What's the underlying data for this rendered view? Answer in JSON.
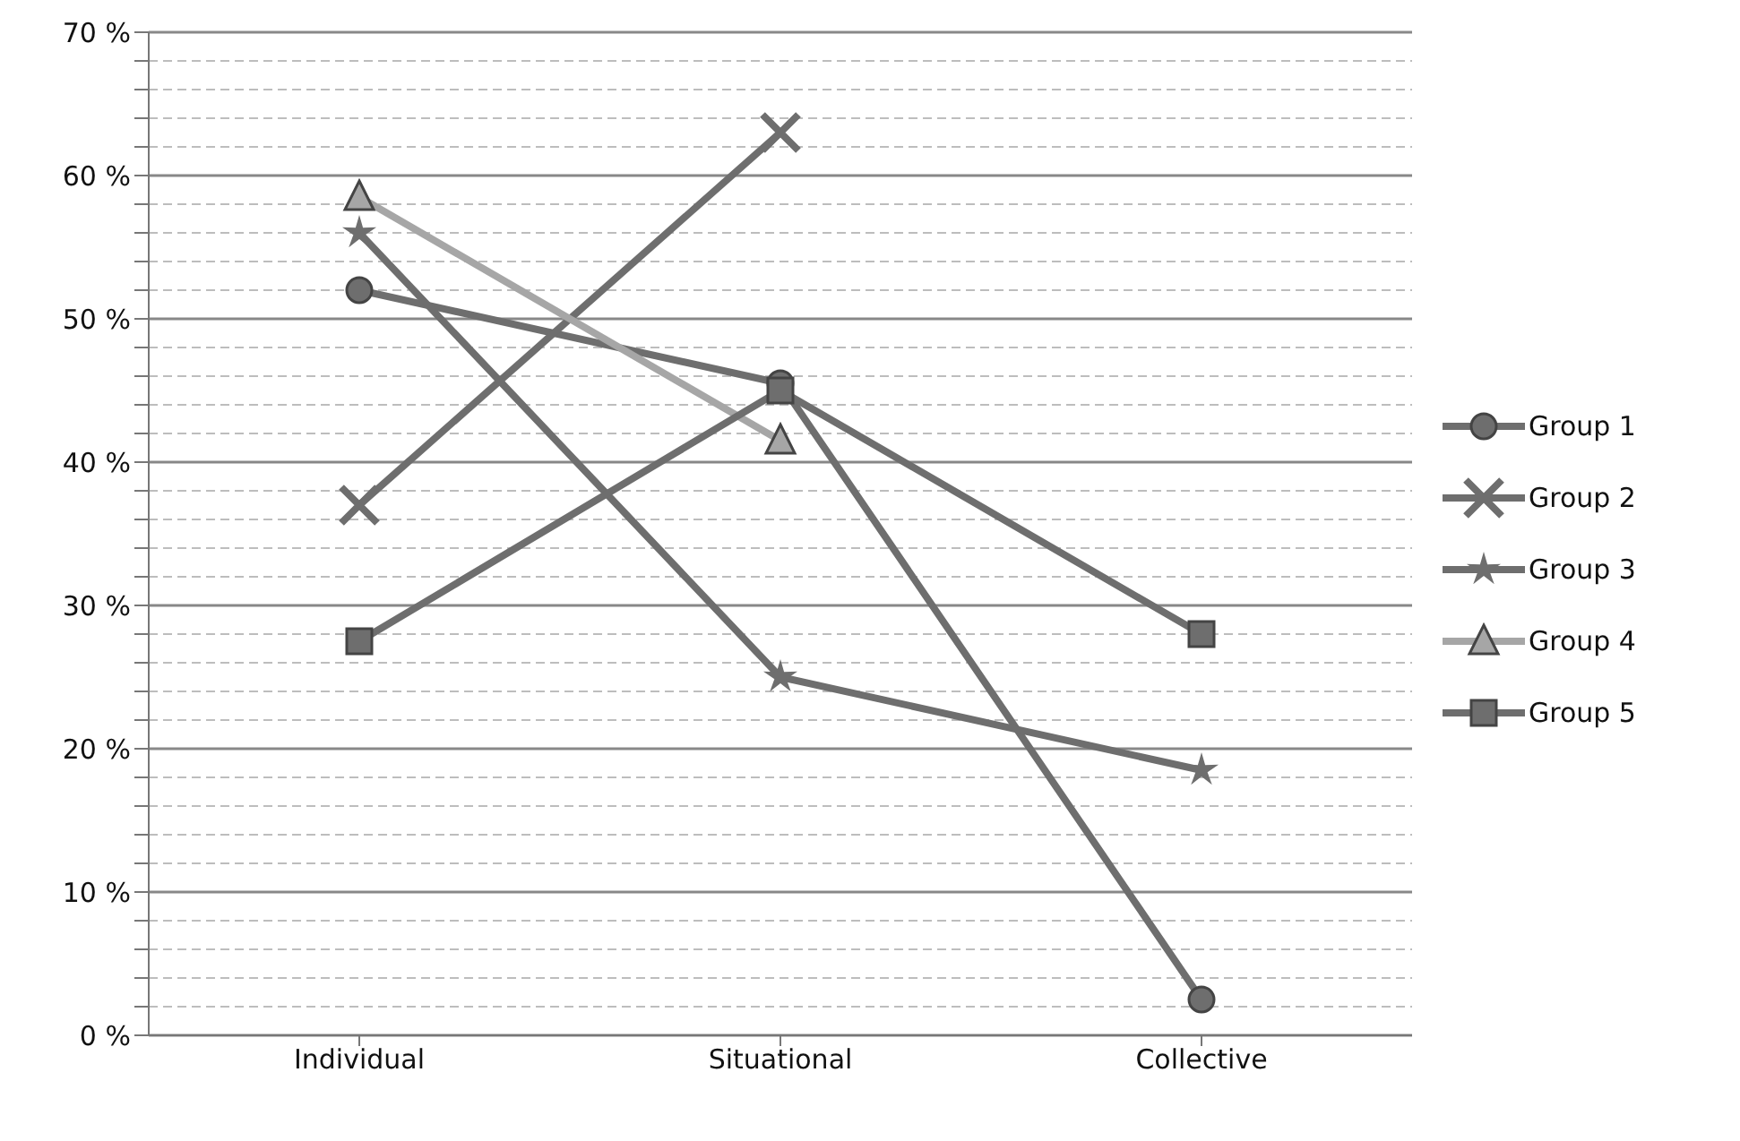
{
  "chart_data": {
    "type": "line",
    "categories": [
      "Individual",
      "Situational",
      "Collective"
    ],
    "series": [
      {
        "name": "Group 1",
        "color": "#6e6e6e",
        "marker": "circle",
        "values": [
          52,
          45.5,
          2.5
        ]
      },
      {
        "name": "Group 2",
        "color": "#6e6e6e",
        "marker": "cross",
        "values": [
          37,
          63,
          null
        ]
      },
      {
        "name": "Group 3",
        "color": "#6e6e6e",
        "marker": "star",
        "values": [
          56,
          25,
          18.5
        ]
      },
      {
        "name": "Group 4",
        "color": "#a6a6a6",
        "marker": "triangle",
        "values": [
          58.5,
          41.5,
          null
        ]
      },
      {
        "name": "Group 5",
        "color": "#6e6e6e",
        "marker": "square",
        "values": [
          27.5,
          45,
          28
        ]
      }
    ],
    "ylim": [
      0,
      70
    ],
    "yticks": [
      {
        "value": 0,
        "label": "0 %"
      },
      {
        "value": 2,
        "label": null
      },
      {
        "value": 4,
        "label": null
      },
      {
        "value": 6,
        "label": null
      },
      {
        "value": 8,
        "label": null
      },
      {
        "value": 10,
        "label": "10 %"
      },
      {
        "value": 12,
        "label": null
      },
      {
        "value": 14,
        "label": null
      },
      {
        "value": 16,
        "label": null
      },
      {
        "value": 18,
        "label": null
      },
      {
        "value": 20,
        "label": "20 %"
      },
      {
        "value": 22,
        "label": null
      },
      {
        "value": 24,
        "label": null
      },
      {
        "value": 26,
        "label": null
      },
      {
        "value": 28,
        "label": null
      },
      {
        "value": 30,
        "label": "30 %"
      },
      {
        "value": 32,
        "label": null
      },
      {
        "value": 34,
        "label": null
      },
      {
        "value": 36,
        "label": null
      },
      {
        "value": 38,
        "label": null
      },
      {
        "value": 40,
        "label": "40 %"
      },
      {
        "value": 42,
        "label": null
      },
      {
        "value": 44,
        "label": null
      },
      {
        "value": 46,
        "label": null
      },
      {
        "value": 48,
        "label": null
      },
      {
        "value": 50,
        "label": "50 %"
      },
      {
        "value": 52,
        "label": null
      },
      {
        "value": 54,
        "label": null
      },
      {
        "value": 56,
        "label": null
      },
      {
        "value": 58,
        "label": null
      },
      {
        "value": 60,
        "label": "60 %"
      },
      {
        "value": 62,
        "label": null
      },
      {
        "value": 64,
        "label": null
      },
      {
        "value": 66,
        "label": null
      },
      {
        "value": 68,
        "label": null
      },
      {
        "value": 70,
        "label": "70 %"
      }
    ],
    "grid": "y",
    "legend": "right"
  }
}
